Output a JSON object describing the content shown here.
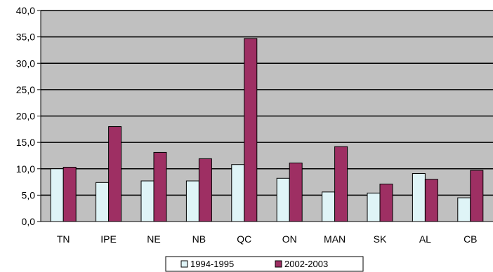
{
  "chart_data": {
    "type": "bar",
    "categories": [
      "TN",
      "IPE",
      "NE",
      "NB",
      "QC",
      "ON",
      "MAN",
      "SK",
      "AL",
      "CB"
    ],
    "series": [
      {
        "name": "1994-1995",
        "color": "#dff4f7",
        "values": [
          10.0,
          7.4,
          7.7,
          7.7,
          10.8,
          8.2,
          5.6,
          5.4,
          9.1,
          4.5
        ]
      },
      {
        "name": "2002-2003",
        "color": "#9e2f63",
        "values": [
          10.3,
          18.0,
          13.1,
          11.9,
          34.7,
          11.1,
          14.2,
          7.1,
          8.0,
          9.7
        ]
      }
    ],
    "y_ticks": [
      "0,0",
      "5,0",
      "10,0",
      "15,0",
      "20,0",
      "25,0",
      "30,0",
      "35,0",
      "40,0"
    ],
    "ylim": [
      0,
      40
    ],
    "y_step": 5,
    "grid": true,
    "plot_background": "#c0c0c0",
    "legend": "bottom"
  }
}
